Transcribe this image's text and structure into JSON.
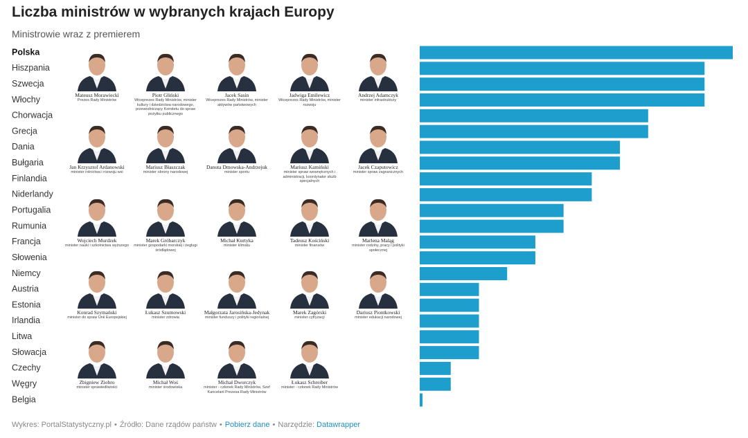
{
  "chart_data": {
    "type": "bar",
    "orientation": "horizontal",
    "title": "Liczba ministrów w wybranych krajach Europy",
    "subtitle": "Ministrowie wraz z premierem",
    "categories": [
      "Polska",
      "Hiszpania",
      "Szwecja",
      "Włochy",
      "Chorwacja",
      "Grecja",
      "Dania",
      "Bułgaria",
      "Finlandia",
      "Niderlandy",
      "Portugalia",
      "Rumunia",
      "Francja",
      "Słowenia",
      "Niemcy",
      "Austria",
      "Estonia",
      "Irlandia",
      "Litwa",
      "Słowacja",
      "Czechy",
      "Węgry",
      "Belgia"
    ],
    "values": [
      24,
      23,
      23,
      23,
      21,
      21,
      20,
      20,
      19,
      19,
      18,
      18,
      17,
      17,
      16,
      15,
      15,
      15,
      15,
      15,
      14,
      14,
      13
    ],
    "color": "#1d9ecd",
    "xlim": [
      12.9,
      24
    ]
  },
  "ministers": [
    {
      "name": "Mateusz Morawiecki",
      "role": "Prezes Rady Ministrów"
    },
    {
      "name": "Piotr Gliński",
      "role": "Wiceprezes Rady Ministrów, minister kultury i dziedzictwa narodowego, przewodniczący Komitetu do spraw pożytku publicznego"
    },
    {
      "name": "Jacek Sasin",
      "role": "Wiceprezes Rady Ministrów, minister aktywów państwowych"
    },
    {
      "name": "Jadwiga Emilewicz",
      "role": "Wiceprezes Rady Ministrów, minister rozwoju"
    },
    {
      "name": "Andrzej Adamczyk",
      "role": "minister infrastruktury"
    },
    {
      "name": "Jan Krzysztof Ardanowski",
      "role": "minister rolnictwa i rozwoju wsi"
    },
    {
      "name": "Mariusz Błaszczak",
      "role": "minister obrony narodowej"
    },
    {
      "name": "Danuta Dmowska-Andrzejuk",
      "role": "minister sportu"
    },
    {
      "name": "Mariusz Kamiński",
      "role": "minister spraw wewnętrznych i administracji, koordynator służb specjalnych"
    },
    {
      "name": "Jacek Czaputowicz",
      "role": "minister spraw zagranicznych"
    },
    {
      "name": "Wojciech Murdzek",
      "role": "minister nauki i szkolnictwa wyższego"
    },
    {
      "name": "Marek Gróbarczyk",
      "role": "minister gospodarki morskiej i żeglugi śródlądowej"
    },
    {
      "name": "Michał Kurtyka",
      "role": "minister klimatu"
    },
    {
      "name": "Tadeusz Kościński",
      "role": "minister finansów"
    },
    {
      "name": "Marlena Maląg",
      "role": "minister rodziny, pracy i polityki społecznej"
    },
    {
      "name": "Konrad Szymański",
      "role": "minister do spraw Unii Europejskiej"
    },
    {
      "name": "Łukasz Szumowski",
      "role": "minister zdrowia"
    },
    {
      "name": "Małgorzata Jarosińska-Jedynak",
      "role": "minister funduszy i polityki regionalnej"
    },
    {
      "name": "Marek Zagórski",
      "role": "minister cyfryzacji"
    },
    {
      "name": "Dariusz Piontkowski",
      "role": "minister edukacji narodowej"
    },
    {
      "name": "Zbigniew Ziobro",
      "role": "minister sprawiedliwości"
    },
    {
      "name": "Michał Woś",
      "role": "minister środowiska"
    },
    {
      "name": "Michał Dworczyk",
      "role": "minister - członek Rady Ministrów, Szef Kancelarii Prezesa Rady Ministrów"
    },
    {
      "name": "Łukasz Schreiber",
      "role": "minister - członek Rady Ministrów"
    }
  ],
  "footer": {
    "chart_by": "Wykres: PortalStatystyczny.pl",
    "source": "Źródło: Dane rządów państw",
    "download": "Pobierz dane",
    "tool_label": "Narzędzie:",
    "tool": "Datawrapper"
  }
}
